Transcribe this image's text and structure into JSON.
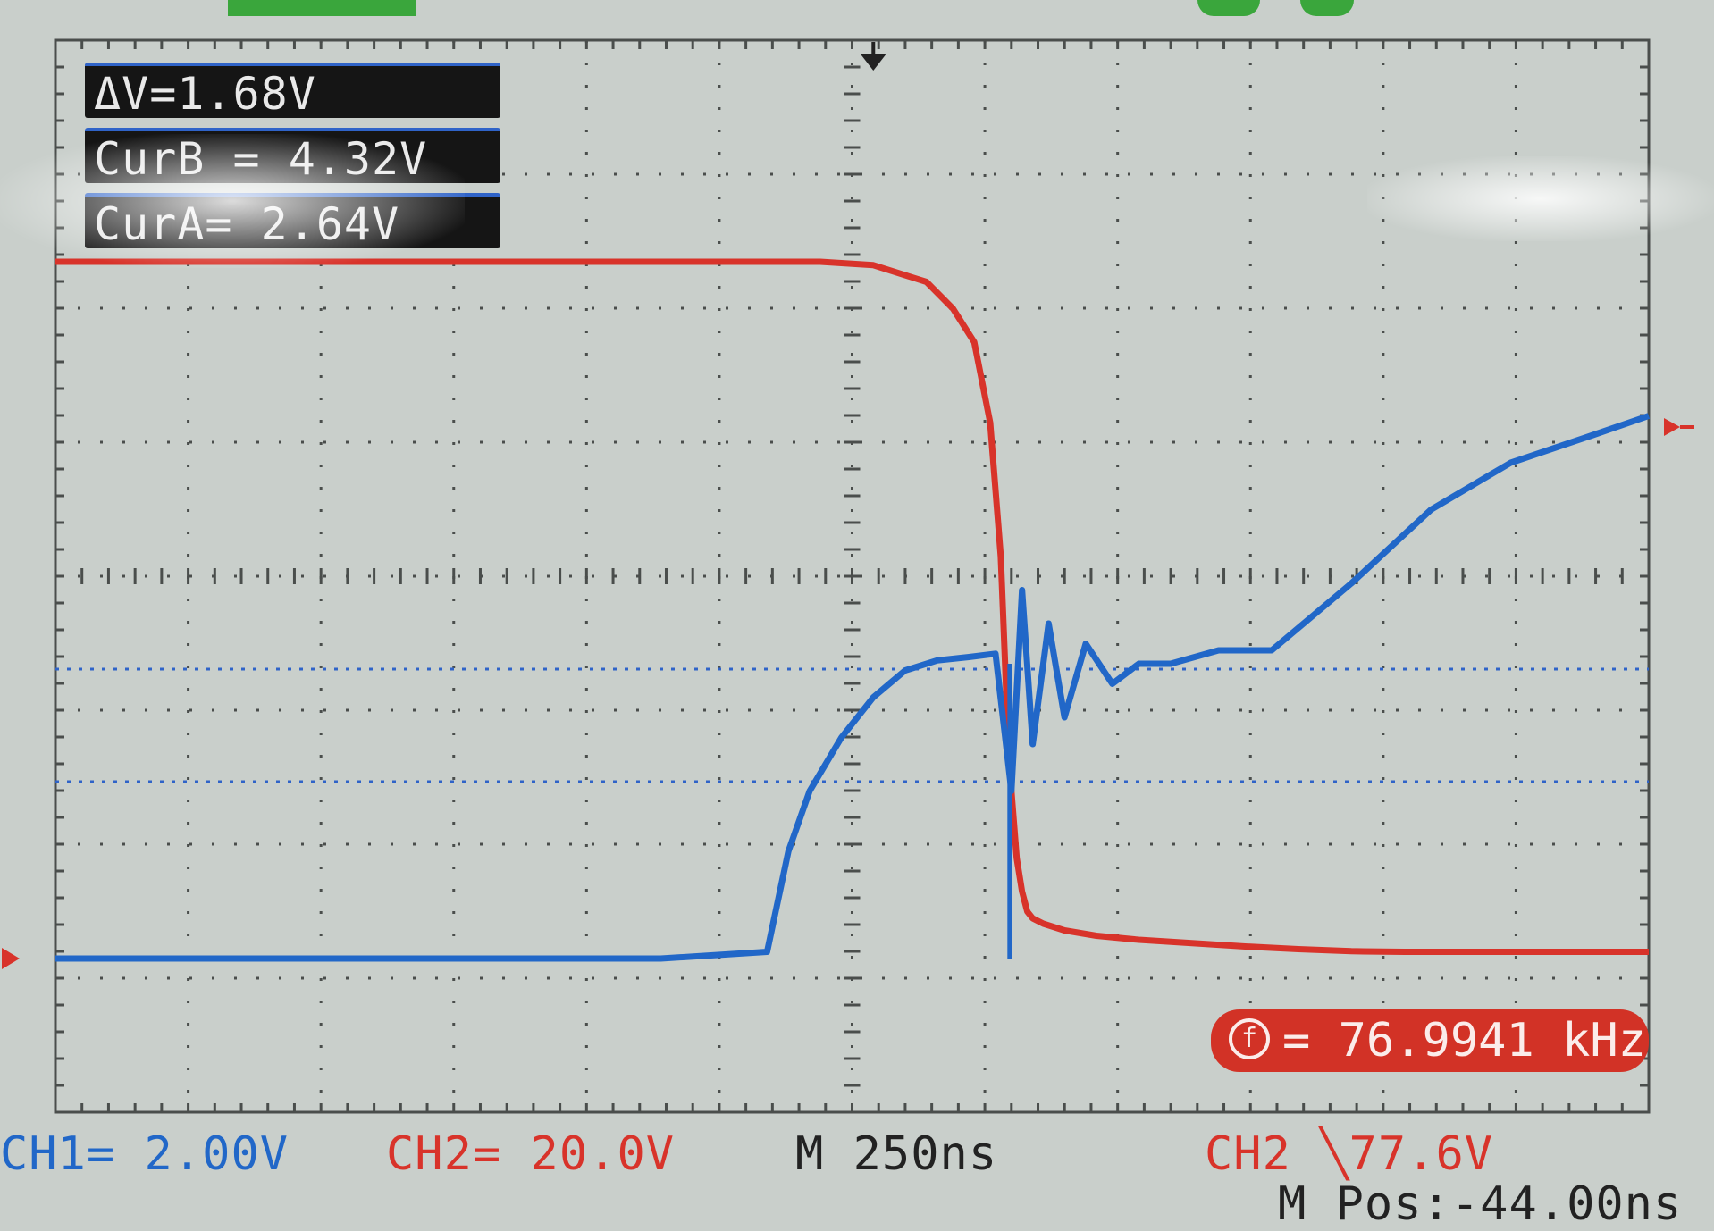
{
  "readouts": {
    "delta_v": "ΔV=1.68V",
    "cur_b": "CurB = 4.32V",
    "cur_a": "CurA= 2.64V",
    "frequency": "= 76.9941 kHz",
    "frequency_icon": "f"
  },
  "status": {
    "ch1": "CH1= 2.00V",
    "ch2": "CH2= 20.0V",
    "timebase": "M 250ns",
    "trigger": "CH2 ╲77.6V",
    "m_pos": "M Pos:-44.00ns"
  },
  "colors": {
    "background": "#c9cfcb",
    "grid": "#4a4e4c",
    "cursor_line": "#2f63c8",
    "ch1": "#2167c8",
    "ch2": "#d8332a",
    "text_dark": "#222222",
    "badge": "#d23226"
  },
  "chart_data": {
    "type": "line",
    "title": "",
    "xlabel": "",
    "ylabel": "",
    "grid": true,
    "x_unit": "ns",
    "timebase_ns_per_div": 250,
    "x_divisions": 12,
    "y_divisions": 8,
    "xlim": [
      -1540,
      1460
    ],
    "cursors_v": {
      "cur_a": 2.64,
      "cur_b": 4.32,
      "delta": 1.68
    },
    "series": [
      {
        "name": "CH1",
        "volts_per_div": 2.0,
        "color": "#2167c8",
        "x": [
          -1540,
          -1200,
          -800,
          -400,
          -200,
          -160,
          -120,
          -60,
          0,
          60,
          120,
          180,
          230,
          260,
          280,
          300,
          330,
          360,
          400,
          450,
          500,
          560,
          650,
          750,
          900,
          1050,
          1200,
          1350,
          1460
        ],
        "y": [
          0,
          0,
          0,
          0,
          0.1,
          1.6,
          2.5,
          3.3,
          3.9,
          4.3,
          4.45,
          4.5,
          4.55,
          2.5,
          5.5,
          3.2,
          5.0,
          3.6,
          4.7,
          4.1,
          4.4,
          4.4,
          4.6,
          4.6,
          5.6,
          6.7,
          7.4,
          7.8,
          8.1
        ]
      },
      {
        "name": "CH2",
        "volts_per_div": 20.0,
        "color": "#d8332a",
        "x": [
          -1540,
          -1000,
          -500,
          -100,
          0,
          100,
          150,
          190,
          220,
          240,
          250,
          260,
          270,
          280,
          290,
          300,
          320,
          360,
          420,
          500,
          600,
          700,
          800,
          900,
          1000,
          1200,
          1460
        ],
        "y": [
          104,
          104,
          104,
          104,
          103.5,
          101,
          97,
          92,
          80,
          60,
          40,
          25,
          15,
          10,
          7,
          6,
          5.2,
          4.2,
          3.4,
          2.8,
          2.3,
          1.8,
          1.4,
          1.1,
          1.0,
          1.0,
          1.0
        ]
      }
    ]
  }
}
